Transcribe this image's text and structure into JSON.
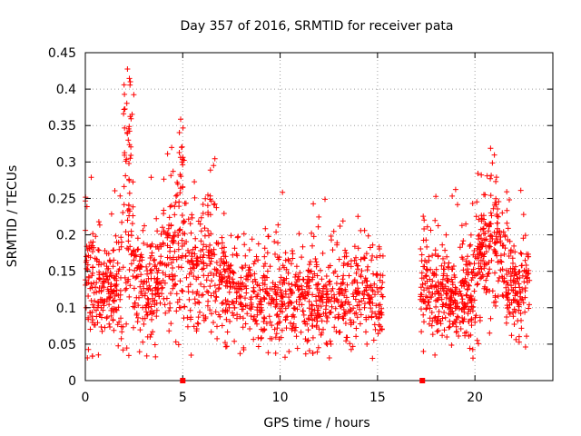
{
  "chart_data": {
    "type": "scatter",
    "title": "Day 357 of 2016, SRMTID for receiver pata",
    "xlabel": "GPS time / hours",
    "ylabel": "SRMTID / TECUs",
    "xlim": [
      0,
      24
    ],
    "ylim": [
      0,
      0.45
    ],
    "x_ticks": [
      0,
      5,
      10,
      15,
      20
    ],
    "x_tick_labels": [
      "0",
      "5",
      "10",
      "15",
      "20"
    ],
    "y_ticks": [
      0,
      0.05,
      0.1,
      0.15,
      0.2,
      0.25,
      0.3,
      0.35,
      0.4,
      0.45
    ],
    "y_tick_labels": [
      "0",
      "0.05",
      "0.1",
      "0.15",
      "0.2",
      "0.25",
      "0.3",
      "0.35",
      "0.4",
      "0.45"
    ],
    "grid": true,
    "marker": "plus",
    "color": "#ff0000",
    "zero_markers_x": [
      5.0,
      17.3
    ],
    "series": [
      {
        "name": "SRMTID",
        "segments": [
          {
            "x_start": 0.0,
            "x_end": 15.3,
            "count": 1500
          },
          {
            "x_start": 17.2,
            "x_end": 22.8,
            "count": 650
          }
        ],
        "envelope": [
          [
            0.0,
            0.17,
            0.05
          ],
          [
            0.3,
            0.13,
            0.045
          ],
          [
            0.8,
            0.12,
            0.035
          ],
          [
            1.5,
            0.12,
            0.03
          ],
          [
            2.0,
            0.15,
            0.055
          ],
          [
            2.3,
            0.2,
            0.09
          ],
          [
            2.7,
            0.14,
            0.045
          ],
          [
            3.2,
            0.11,
            0.035
          ],
          [
            3.8,
            0.15,
            0.04
          ],
          [
            4.3,
            0.17,
            0.05
          ],
          [
            4.9,
            0.18,
            0.07
          ],
          [
            5.3,
            0.15,
            0.05
          ],
          [
            6.0,
            0.16,
            0.04
          ],
          [
            6.5,
            0.17,
            0.045
          ],
          [
            7.2,
            0.13,
            0.035
          ],
          [
            8.0,
            0.12,
            0.035
          ],
          [
            9.0,
            0.11,
            0.035
          ],
          [
            10.0,
            0.11,
            0.035
          ],
          [
            11.0,
            0.11,
            0.035
          ],
          [
            12.0,
            0.105,
            0.03
          ],
          [
            13.0,
            0.11,
            0.03
          ],
          [
            14.0,
            0.12,
            0.035
          ],
          [
            15.3,
            0.11,
            0.03
          ],
          [
            17.2,
            0.11,
            0.03
          ],
          [
            17.8,
            0.13,
            0.04
          ],
          [
            18.5,
            0.12,
            0.035
          ],
          [
            19.2,
            0.1,
            0.03
          ],
          [
            19.8,
            0.12,
            0.035
          ],
          [
            20.3,
            0.17,
            0.04
          ],
          [
            20.8,
            0.19,
            0.045
          ],
          [
            21.3,
            0.16,
            0.04
          ],
          [
            21.8,
            0.13,
            0.04
          ],
          [
            22.3,
            0.11,
            0.035
          ],
          [
            22.8,
            0.13,
            0.035
          ]
        ],
        "spikes": [
          {
            "x_min": 1.95,
            "x_max": 2.35,
            "y_min": 0.28,
            "y_max": 0.43,
            "count": 22
          },
          {
            "x_min": 4.8,
            "x_max": 5.05,
            "y_min": 0.28,
            "y_max": 0.36,
            "count": 10
          },
          {
            "x_min": 6.4,
            "x_max": 6.7,
            "y_min": 0.24,
            "y_max": 0.31,
            "count": 5
          }
        ]
      }
    ]
  }
}
